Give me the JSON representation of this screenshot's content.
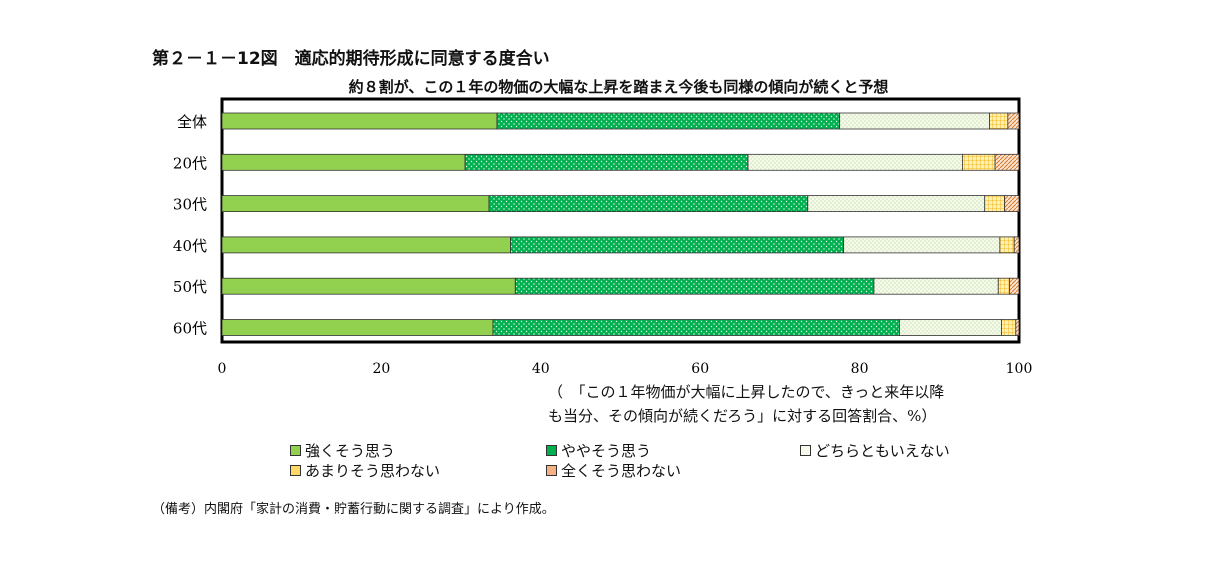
{
  "figure": {
    "title": "第２－１－12図　適応的期待形成に同意する度合い",
    "subtitle": "約８割が、この１年の物価の大幅な上昇を踏まえ今後も同様の傾向が続くと予想",
    "axis_note_line1": "（　「この１年物価が大幅に上昇したので、きっと来年以降",
    "axis_note_line2": "も当分、その傾向が続くだろう」に対する回答割合、%）",
    "source": "（備考）内閣府「家計の消費・貯蓄行動に関する調査」により作成。"
  },
  "chart_data": {
    "type": "bar",
    "orientation": "horizontal",
    "stacked": true,
    "title": "適応的期待形成に同意する度合い",
    "subtitle": "約８割が、この１年の物価の大幅な上昇を踏まえ今後も同様の傾向が続くと予想",
    "categories": [
      "全体",
      "20代",
      "30代",
      "40代",
      "50代",
      "60代"
    ],
    "xlim": [
      0,
      100
    ],
    "xticks": [
      0,
      20,
      40,
      60,
      80,
      100
    ],
    "xlabel": "（　「この１年物価が大幅に上昇したので、きっと来年以降も当分、その傾向が続くだろう」に対する回答割合、%）",
    "grid": false,
    "legend_position": "bottom",
    "series": [
      {
        "name": "強くそう思う",
        "color": "#92d050",
        "pattern": "solid",
        "values": [
          34.5,
          30.5,
          33.5,
          36.2,
          36.8,
          34.0
        ]
      },
      {
        "name": "ややそう思う",
        "color": "#00b050",
        "pattern": "dots",
        "values": [
          43.0,
          35.5,
          40.0,
          41.8,
          45.0,
          51.0
        ]
      },
      {
        "name": "どちらともいえない",
        "color": "#f2f8e4",
        "pattern": "fine-dots",
        "values": [
          18.8,
          26.9,
          22.2,
          19.6,
          15.6,
          12.8
        ]
      },
      {
        "name": "あまりそう思わない",
        "color": "#ffd966",
        "pattern": "grid",
        "values": [
          2.3,
          4.1,
          2.5,
          1.8,
          1.4,
          1.8
        ]
      },
      {
        "name": "全くそう思わない",
        "color": "#f4b183",
        "pattern": "hatch",
        "values": [
          1.4,
          3.0,
          1.8,
          0.6,
          1.2,
          0.4
        ]
      }
    ]
  }
}
